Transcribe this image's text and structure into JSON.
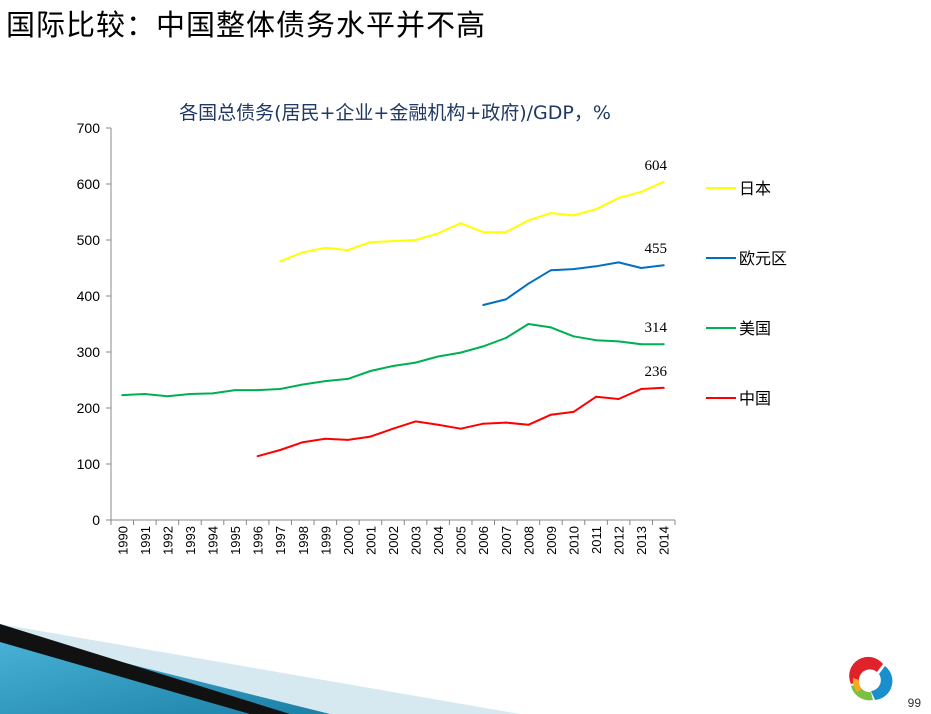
{
  "slide": {
    "title": "国际比较：中国整体债务水平并不高",
    "page_number": "99"
  },
  "chart_data": {
    "type": "line",
    "title": "各国总债务(居民+企业+金融机构+政府)/GDP，%",
    "xlabel": "",
    "ylabel": "",
    "ylim": [
      0,
      700
    ],
    "yticks": [
      0,
      100,
      200,
      300,
      400,
      500,
      600,
      700
    ],
    "grid": false,
    "legend": "right",
    "categories": [
      "1990",
      "1991",
      "1992",
      "1993",
      "1994",
      "1995",
      "1996",
      "1997",
      "1998",
      "1999",
      "2000",
      "2001",
      "2002",
      "2003",
      "2004",
      "2005",
      "2006",
      "2007",
      "2008",
      "2009",
      "2010",
      "2011",
      "2012",
      "2013",
      "2014"
    ],
    "series": [
      {
        "name": "日本",
        "color": "#ffff00",
        "end_label": "604",
        "values": [
          null,
          null,
          null,
          null,
          null,
          null,
          null,
          462,
          478,
          486,
          482,
          496,
          498,
          500,
          512,
          530,
          514,
          514,
          535,
          548,
          544,
          555,
          575,
          586,
          604
        ]
      },
      {
        "name": "欧元区",
        "color": "#0070c0",
        "end_label": "455",
        "values": [
          null,
          null,
          null,
          null,
          null,
          null,
          null,
          null,
          null,
          null,
          null,
          null,
          null,
          null,
          null,
          null,
          384,
          394,
          422,
          446,
          448,
          453,
          460,
          450,
          455
        ]
      },
      {
        "name": "美国",
        "color": "#00b050",
        "end_label": "314",
        "values": [
          223,
          225,
          221,
          225,
          226,
          232,
          232,
          234,
          242,
          248,
          252,
          266,
          275,
          281,
          292,
          299,
          310,
          325,
          350,
          344,
          328,
          321,
          319,
          314,
          314
        ]
      },
      {
        "name": "中国",
        "color": "#ff0000",
        "end_label": "236",
        "values": [
          null,
          null,
          null,
          null,
          null,
          null,
          114,
          125,
          139,
          145,
          143,
          149,
          163,
          176,
          170,
          163,
          172,
          174,
          170,
          188,
          193,
          220,
          216,
          234,
          236
        ]
      }
    ]
  }
}
